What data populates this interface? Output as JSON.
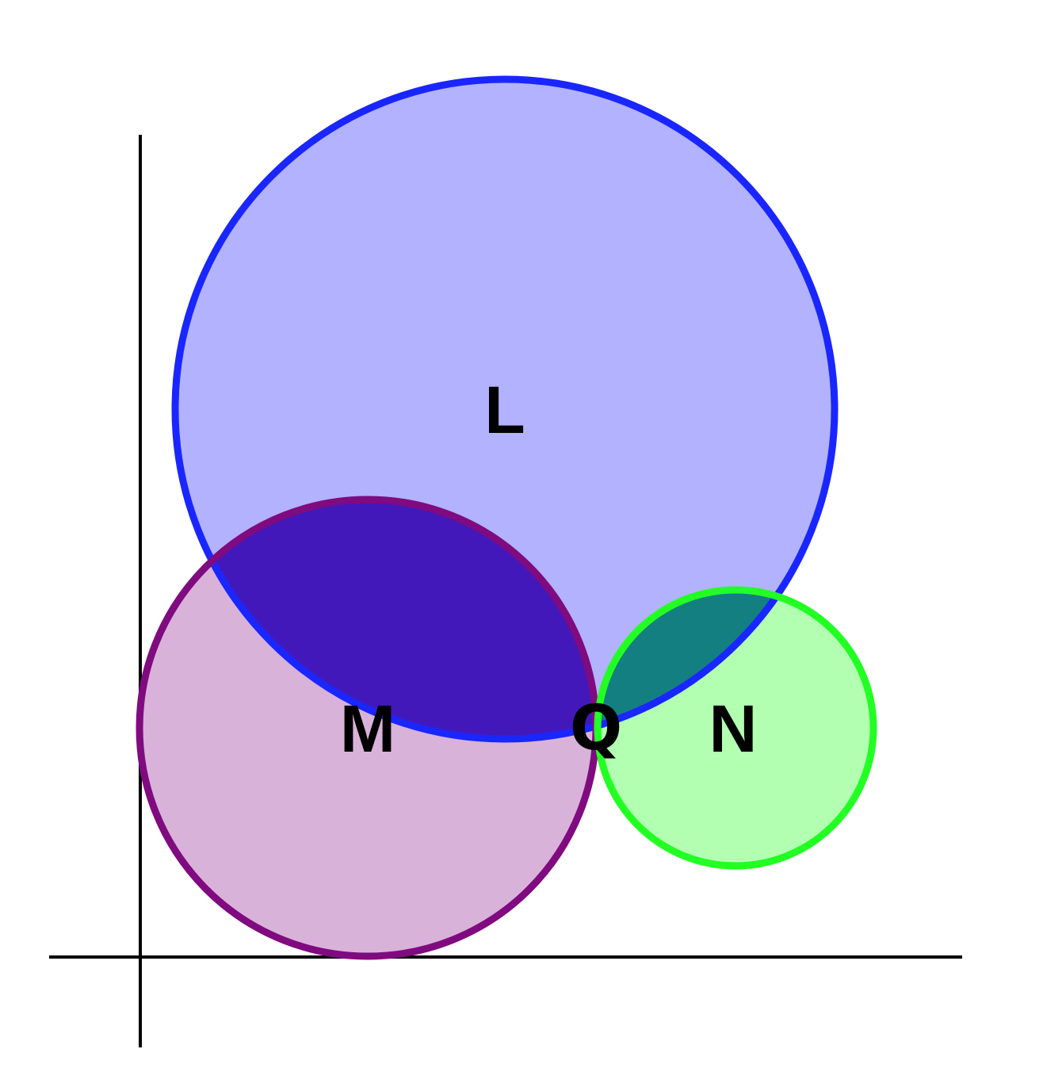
{
  "diagram": {
    "circles": [
      {
        "id": "L",
        "label": "L",
        "fill": "#6666ff",
        "fill_opacity": 0.5,
        "stroke": "#1a26ff"
      },
      {
        "id": "M",
        "label": "M",
        "fill": "#aa55aa",
        "fill_opacity": 0.45,
        "stroke": "#800a80"
      },
      {
        "id": "N",
        "label": "N",
        "fill": "#66ff66",
        "fill_opacity": 0.5,
        "stroke": "#22ff22"
      }
    ],
    "overlap_colors": {
      "L_M": "#4318bb",
      "L_N": "#147f80"
    },
    "point": {
      "label": "Q"
    },
    "axis_color": "#000000"
  }
}
